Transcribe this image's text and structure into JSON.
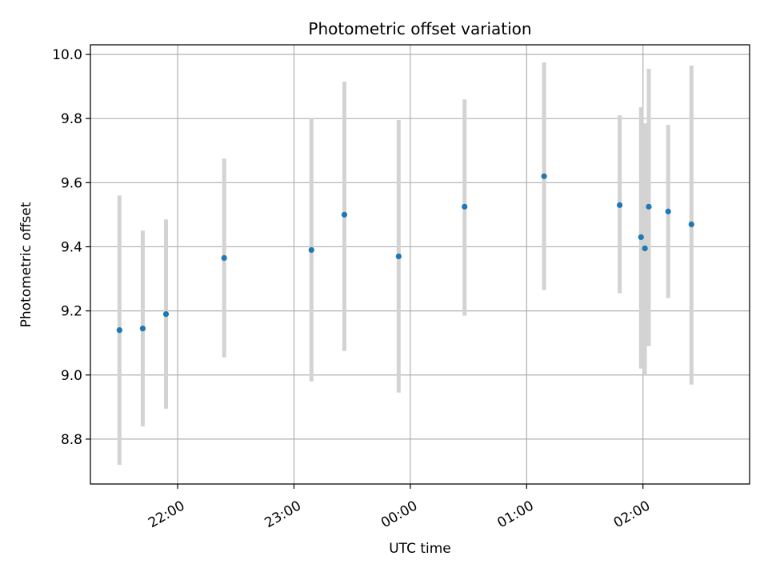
{
  "chart_data": {
    "type": "scatter",
    "title": "Photometric offset variation",
    "xlabel": "UTC time",
    "ylabel": "Photometric offset",
    "grid": true,
    "x_unit": "UTC clock time (hours, continuing past midnight)",
    "xlim": [
      "21:15",
      "02:55"
    ],
    "ylim": [
      8.66,
      10.03
    ],
    "yticks": [
      8.8,
      9.0,
      9.2,
      9.4,
      9.6,
      9.8,
      10.0
    ],
    "ytick_labels": [
      "8.8",
      "9.0",
      "9.2",
      "9.4",
      "9.6",
      "9.8",
      "10.0"
    ],
    "xticks": [
      "22:00",
      "23:00",
      "00:00",
      "01:00",
      "02:00"
    ],
    "xtick_labels": [
      "22:00",
      "23:00",
      "00:00",
      "01:00",
      "02:00"
    ],
    "colors": {
      "point": "#1f77b4",
      "errorbar": "#d3d3d3",
      "grid": "#b0b0b0"
    },
    "series": [
      {
        "points": [
          {
            "x": "21:30",
            "y": 9.14,
            "ylow": 8.72,
            "yhigh": 9.56
          },
          {
            "x": "21:42",
            "y": 9.145,
            "ylow": 8.84,
            "yhigh": 9.45
          },
          {
            "x": "21:54",
            "y": 9.19,
            "ylow": 8.895,
            "yhigh": 9.485
          },
          {
            "x": "22:24",
            "y": 9.365,
            "ylow": 9.055,
            "yhigh": 9.675
          },
          {
            "x": "23:09",
            "y": 9.39,
            "ylow": 8.98,
            "yhigh": 9.8
          },
          {
            "x": "23:26",
            "y": 9.5,
            "ylow": 9.075,
            "yhigh": 9.915
          },
          {
            "x": "23:54",
            "y": 9.37,
            "ylow": 8.945,
            "yhigh": 9.795
          },
          {
            "x": "00:28",
            "y": 9.525,
            "ylow": 9.185,
            "yhigh": 9.86
          },
          {
            "x": "01:09",
            "y": 9.62,
            "ylow": 9.265,
            "yhigh": 9.975
          },
          {
            "x": "01:48",
            "y": 9.53,
            "ylow": 9.255,
            "yhigh": 9.81
          },
          {
            "x": "01:59",
            "y": 9.43,
            "ylow": 9.02,
            "yhigh": 9.835
          },
          {
            "x": "02:01",
            "y": 9.395,
            "ylow": 9.0,
            "yhigh": 9.785
          },
          {
            "x": "02:03",
            "y": 9.525,
            "ylow": 9.09,
            "yhigh": 9.955
          },
          {
            "x": "02:13",
            "y": 9.51,
            "ylow": 9.24,
            "yhigh": 9.78
          },
          {
            "x": "02:25",
            "y": 9.47,
            "ylow": 8.97,
            "yhigh": 9.965
          }
        ]
      }
    ]
  }
}
